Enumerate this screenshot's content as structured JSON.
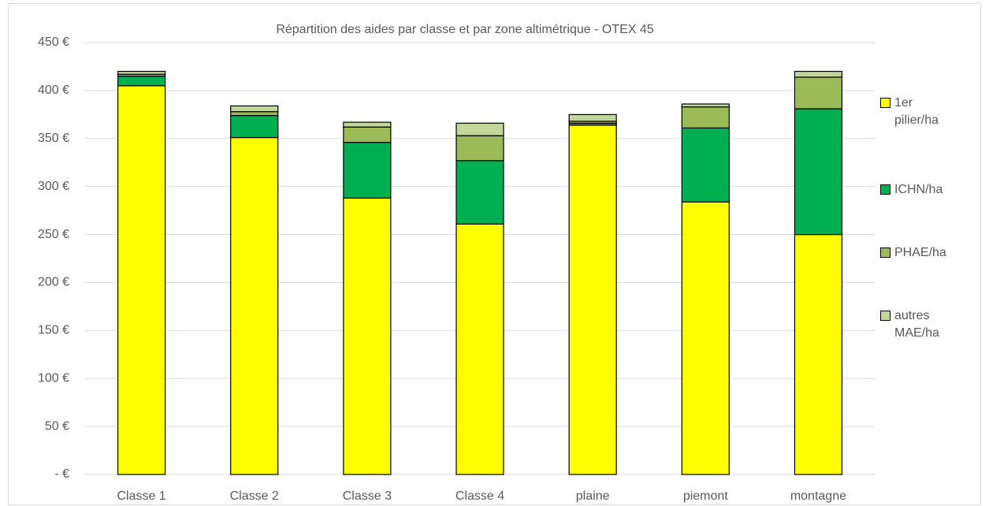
{
  "chart_data": {
    "type": "stacked_bar",
    "title": "Répartition des aides par classe et par zone altimétrique - OTEX 45",
    "categories": [
      "Classe 1",
      "Classe 2",
      "Classe 3",
      "Classe 4",
      "plaine",
      "piemont",
      "montagne"
    ],
    "series": [
      {
        "name": "1er pilier/ha",
        "color": "#ffff00",
        "values": [
          405,
          351,
          288,
          261,
          364,
          284,
          250
        ]
      },
      {
        "name": "ICHN/ha",
        "color": "#00b050",
        "values": [
          10,
          23,
          58,
          66,
          2,
          77,
          131
        ]
      },
      {
        "name": "PHAE/ha",
        "color": "#9bbb59",
        "values": [
          2,
          4,
          16,
          26,
          2,
          22,
          33
        ]
      },
      {
        "name": "autres MAE/ha",
        "color": "#c4d79b",
        "values": [
          3,
          6,
          5,
          13,
          7,
          3,
          6
        ]
      }
    ],
    "ylim": [
      0,
      450
    ],
    "yticks": [
      {
        "value": 0,
        "label": "-  €"
      },
      {
        "value": 50,
        "label": "50 €"
      },
      {
        "value": 100,
        "label": "100 €"
      },
      {
        "value": 150,
        "label": "150 €"
      },
      {
        "value": 200,
        "label": "200 €"
      },
      {
        "value": 250,
        "label": "250 €"
      },
      {
        "value": 300,
        "label": "300 €"
      },
      {
        "value": 350,
        "label": "350 €"
      },
      {
        "value": 400,
        "label": "400 €"
      },
      {
        "value": 450,
        "label": "450 €"
      }
    ],
    "grid": true,
    "legend": "right"
  }
}
